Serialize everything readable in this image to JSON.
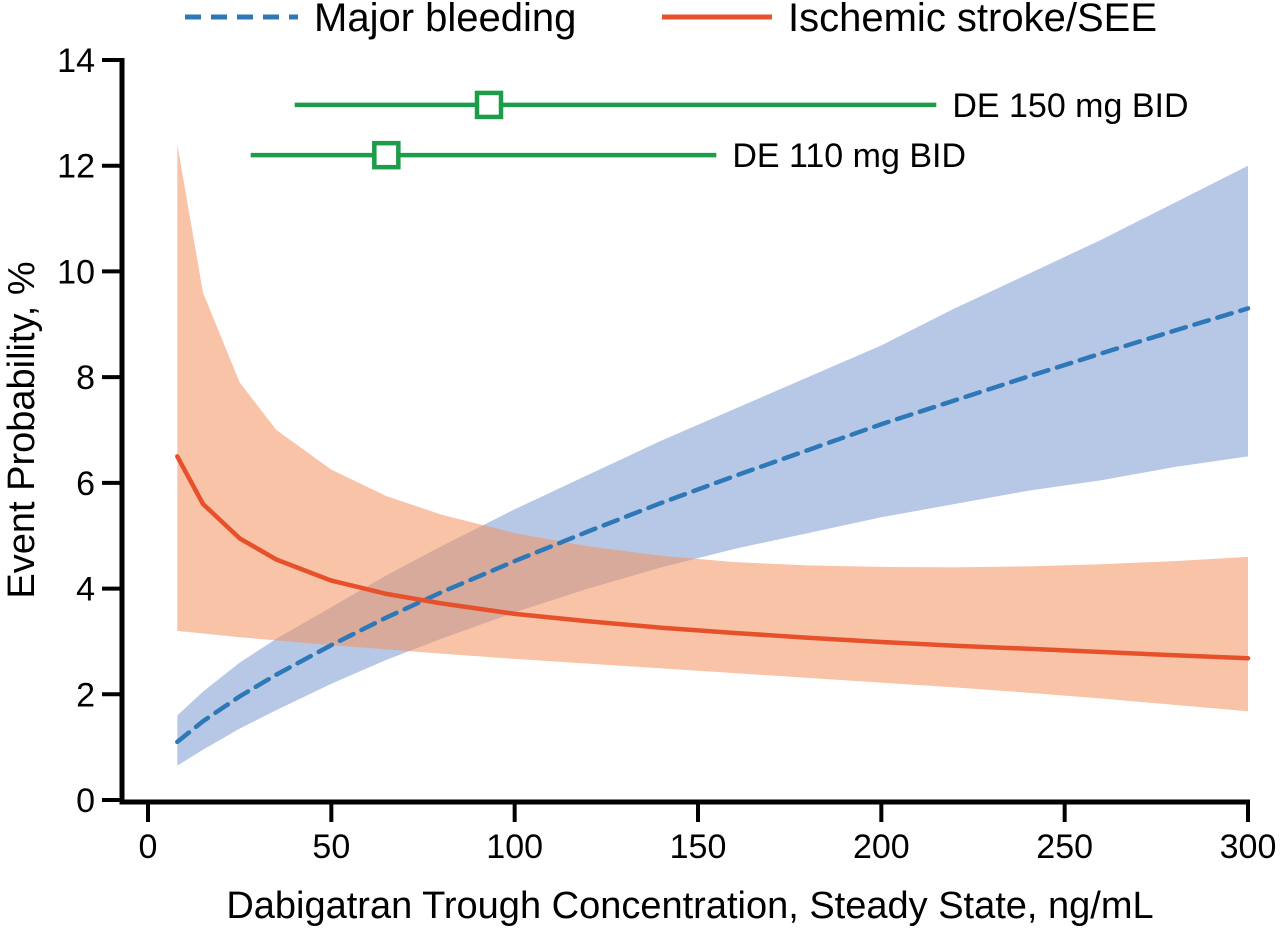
{
  "chart_data": {
    "type": "line",
    "title": "",
    "xlabel": "Dabigatran Trough Concentration, Steady State, ng/mL",
    "ylabel": "Event Probability, %",
    "xlim": [
      0,
      300
    ],
    "ylim": [
      0,
      14
    ],
    "x_ticks": [
      0,
      50,
      100,
      150,
      200,
      250,
      300
    ],
    "y_ticks": [
      0,
      2,
      4,
      6,
      8,
      10,
      12,
      14
    ],
    "grid": false,
    "legend_position": "top",
    "axis_color": "#000000",
    "series": [
      {
        "id": "major-bleeding",
        "name": "Major bleeding",
        "style": "dashed",
        "dashed": true,
        "color": "#2e78b8",
        "band_color": "#7b9bd2",
        "band_opacity": 0.55,
        "x": [
          8,
          15,
          25,
          35,
          50,
          65,
          80,
          100,
          120,
          140,
          160,
          180,
          200,
          220,
          240,
          260,
          280,
          300
        ],
        "y": [
          1.1,
          1.49,
          1.96,
          2.37,
          2.93,
          3.45,
          3.93,
          4.52,
          5.08,
          5.62,
          6.13,
          6.62,
          7.11,
          7.56,
          8.01,
          8.45,
          8.88,
          9.3
        ],
        "band_lower": [
          0.65,
          0.95,
          1.35,
          1.7,
          2.2,
          2.65,
          3.05,
          3.55,
          4.0,
          4.4,
          4.75,
          5.05,
          5.35,
          5.6,
          5.85,
          6.05,
          6.3,
          6.5
        ],
        "band_upper": [
          1.6,
          2.05,
          2.6,
          3.05,
          3.65,
          4.25,
          4.8,
          5.5,
          6.15,
          6.8,
          7.4,
          8.0,
          8.6,
          9.3,
          9.95,
          10.6,
          11.3,
          12.0
        ]
      },
      {
        "id": "ischemic-stroke-see",
        "name": "Ischemic stroke/SEE",
        "style": "solid",
        "dashed": false,
        "color": "#e6512b",
        "band_color": "#f4915e",
        "band_opacity": 0.55,
        "x": [
          8,
          15,
          25,
          35,
          50,
          65,
          80,
          100,
          120,
          140,
          160,
          180,
          200,
          220,
          240,
          260,
          280,
          300
        ],
        "y": [
          6.5,
          5.6,
          4.95,
          4.55,
          4.15,
          3.9,
          3.72,
          3.52,
          3.38,
          3.26,
          3.16,
          3.07,
          2.99,
          2.92,
          2.86,
          2.8,
          2.74,
          2.68
        ],
        "band_lower": [
          3.2,
          3.15,
          3.08,
          3.02,
          2.93,
          2.85,
          2.77,
          2.67,
          2.58,
          2.49,
          2.4,
          2.31,
          2.22,
          2.13,
          2.03,
          1.92,
          1.8,
          1.68
        ],
        "band_upper": [
          12.4,
          9.6,
          7.9,
          7.0,
          6.25,
          5.75,
          5.4,
          5.05,
          4.8,
          4.62,
          4.5,
          4.44,
          4.41,
          4.4,
          4.42,
          4.46,
          4.52,
          4.6
        ]
      }
    ],
    "dose_ranges": {
      "color": "#1d9c49",
      "marker": "open-square",
      "items": [
        {
          "label": "DE 150 mg BID",
          "range_min": 40,
          "range_max": 215,
          "median": 93,
          "y": 13.15
        },
        {
          "label": "DE 110 mg BID",
          "range_min": 28,
          "range_max": 155,
          "median": 65,
          "y": 12.2
        }
      ]
    }
  }
}
